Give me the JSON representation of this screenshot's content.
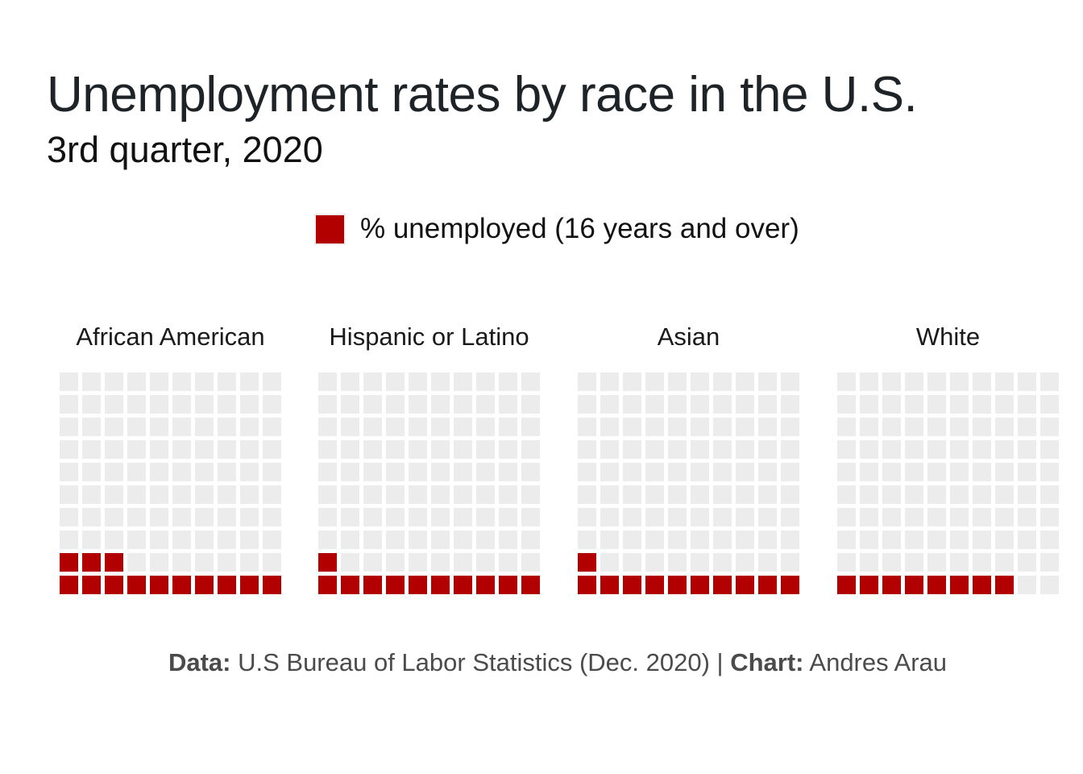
{
  "title": "Unemployment rates by race in the U.S.",
  "subtitle": "3rd quarter, 2020",
  "legend": {
    "label": "% unemployed (16 years and over)",
    "color": "#b20000"
  },
  "caption": {
    "data_label": "Data:",
    "data_text": " U.S Bureau of Labor Statistics (Dec. 2020) | ",
    "chart_label": "Chart:",
    "chart_text": " Andres Arau"
  },
  "colors": {
    "filled": "#b20000",
    "empty": "#ececec"
  },
  "chart_data": {
    "type": "waffle",
    "grid": [
      10,
      10
    ],
    "categories": [
      "African American",
      "Hispanic or Latino",
      "Asian",
      "White"
    ],
    "series": [
      {
        "name": "% unemployed (16 years and over)",
        "values": [
          13,
          11,
          11,
          8
        ]
      }
    ]
  }
}
